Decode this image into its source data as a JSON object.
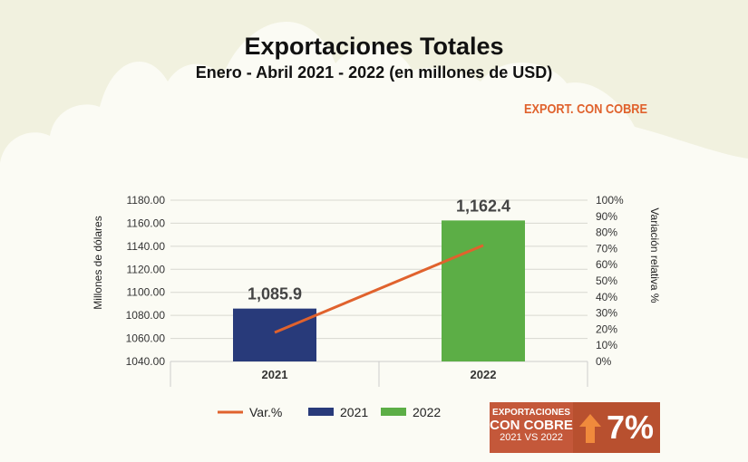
{
  "header": {
    "title": "Exportaciones Totales",
    "subtitle": "Enero - Abril 2021 - 2022 (en millones de USD)",
    "tag": "EXPORT. CON COBRE"
  },
  "colors": {
    "bar2021": "#283a7a",
    "bar2022": "#5cae46",
    "line": "#e0622d",
    "accent": "#c4583a"
  },
  "chart_data": {
    "type": "bar",
    "categories": [
      "2021",
      "2022"
    ],
    "series": [
      {
        "name": "2021",
        "values": [
          1085.9,
          null
        ],
        "color": "#283a7a",
        "axis": "left"
      },
      {
        "name": "2022",
        "values": [
          null,
          1162.4
        ],
        "color": "#5cae46",
        "axis": "left"
      },
      {
        "name": "Var.%",
        "type": "line",
        "values": [
          18,
          72
        ],
        "color": "#e0622d",
        "axis": "right"
      }
    ],
    "data_labels": [
      "1,085.9",
      "1,162.4"
    ],
    "ylabel": "Millones de dólares",
    "y2label": "Variación relativa %",
    "ylim": [
      1040,
      1180
    ],
    "yticks": [
      "1180.00",
      "1160.00",
      "1140.00",
      "1120.00",
      "1100.00",
      "1080.00",
      "1060.00",
      "1040.00"
    ],
    "y2lim": [
      0,
      100
    ],
    "y2ticks": [
      "100%",
      "90%",
      "80%",
      "70%",
      "60%",
      "50%",
      "40%",
      "30%",
      "20%",
      "10%",
      "0%"
    ],
    "grid": true,
    "legend": {
      "position": "bottom",
      "entries": [
        "Var.%",
        "2021",
        "2022"
      ]
    }
  },
  "badge": {
    "line1": "EXPORTACIONES",
    "line2": "CON COBRE",
    "line3": "2021 VS 2022",
    "value": "7%",
    "icon": "arrow-up-icon"
  }
}
